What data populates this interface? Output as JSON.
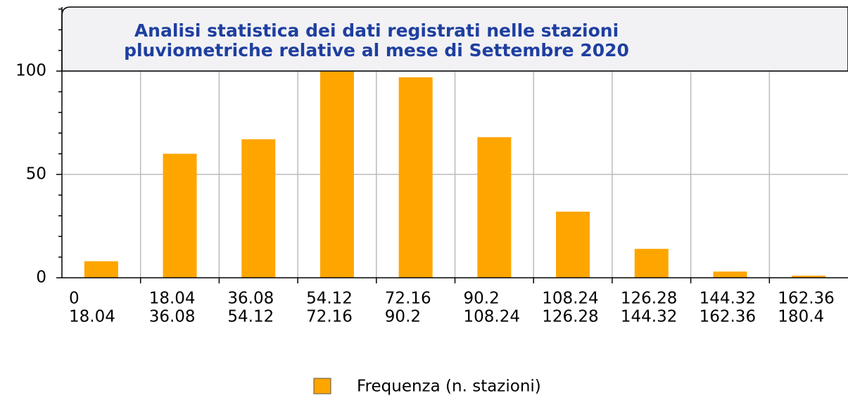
{
  "chart_data": {
    "type": "histogram",
    "title": [
      "Analisi statistica dei dati registrati nelle stazioni",
      "pluviometriche relative al mese di Settembre 2020"
    ],
    "bins": [
      0,
      18.04,
      36.08,
      54.12,
      72.16,
      90.2,
      108.24,
      126.28,
      144.32,
      162.36,
      180.4
    ],
    "series": [
      {
        "name": "Frequenza (n. stazioni)",
        "color": "#ffa500",
        "values": [
          8,
          60,
          67,
          100,
          97,
          68,
          32,
          14,
          3,
          1
        ]
      }
    ],
    "ylim": [
      0,
      131
    ],
    "yticks": [
      0,
      50,
      100
    ],
    "yminorticks": [
      10,
      20,
      30,
      40,
      60,
      70,
      80,
      90,
      110,
      120,
      130
    ],
    "grid": true,
    "legend": "bottom"
  }
}
